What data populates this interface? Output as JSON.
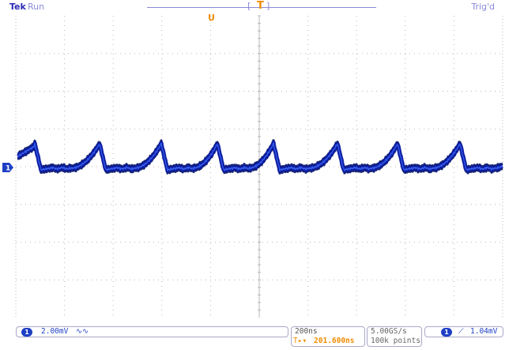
{
  "header": {
    "brand": "Tek",
    "run_status": "Run",
    "trigger_status": "Trig'd",
    "bracket_left": "[",
    "bracket_right": "]",
    "trigger_position_marker": "T",
    "trigger_point_marker": "U"
  },
  "channel": {
    "number": "1",
    "marker_label": "1",
    "vertical_scale": "2.00mV",
    "coupling_symbol": "∿∿"
  },
  "horizontal": {
    "time_per_div": "200ns",
    "delay_prefix": "T▸▾",
    "delay": "201.600ns",
    "sample_rate": "5.00GS/s",
    "record_length": "100k points"
  },
  "trigger": {
    "source": "1",
    "slope_symbol": "⟋",
    "level": "1.04mV"
  },
  "grid": {
    "h_divisions": 10,
    "v_divisions": 8
  },
  "colors": {
    "trace": "#0a1aa8",
    "trace_dark": "#00105e",
    "grid": "#b8b8b8",
    "accent_orange": "#f08c00",
    "label_blue": "#2a2ab8"
  }
}
